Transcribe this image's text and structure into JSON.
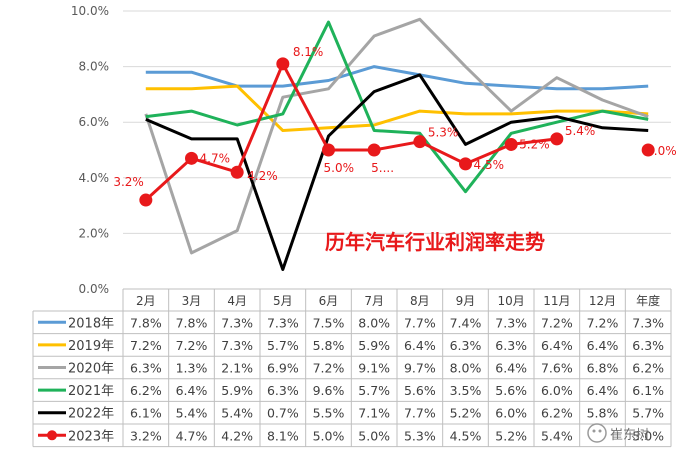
{
  "chart_data": {
    "type": "line",
    "title": "历年汽车行业利润率走势",
    "categories": [
      "2月",
      "3月",
      "4月",
      "5月",
      "6月",
      "7月",
      "8月",
      "9月",
      "10月",
      "11月",
      "12月",
      "年度"
    ],
    "yticks": [
      "0.0%",
      "2.0%",
      "4.0%",
      "6.0%",
      "8.0%",
      "10.0%"
    ],
    "ylim": [
      0,
      10
    ],
    "grid": true,
    "legend": "bottom-table",
    "series": [
      {
        "name": "2018年",
        "color": "#5b9bd5",
        "values": [
          7.8,
          7.8,
          7.3,
          7.3,
          7.5,
          8.0,
          7.7,
          7.4,
          7.3,
          7.2,
          7.2,
          7.3
        ],
        "labels": [
          "7.8%",
          "7.8%",
          "7.3%",
          "7.3%",
          "7.5%",
          "8.0%",
          "7.7%",
          "7.4%",
          "7.3%",
          "7.2%",
          "7.2%",
          "7.3%"
        ]
      },
      {
        "name": "2019年",
        "color": "#ffc000",
        "values": [
          7.2,
          7.2,
          7.3,
          5.7,
          5.8,
          5.9,
          6.4,
          6.3,
          6.3,
          6.4,
          6.4,
          6.3
        ],
        "labels": [
          "7.2%",
          "7.2%",
          "7.3%",
          "5.7%",
          "5.8%",
          "5.9%",
          "6.4%",
          "6.3%",
          "6.3%",
          "6.4%",
          "6.4%",
          "6.3%"
        ]
      },
      {
        "name": "2020年",
        "color": "#a5a5a5",
        "values": [
          6.3,
          1.3,
          2.1,
          6.9,
          7.2,
          9.1,
          9.7,
          8.0,
          6.4,
          7.6,
          6.8,
          6.2
        ],
        "labels": [
          "6.3%",
          "1.3%",
          "2.1%",
          "6.9%",
          "7.2%",
          "9.1%",
          "9.7%",
          "8.0%",
          "6.4%",
          "7.6%",
          "6.8%",
          "6.2%"
        ]
      },
      {
        "name": "2021年",
        "color": "#1fb25a",
        "values": [
          6.2,
          6.4,
          5.9,
          6.3,
          9.6,
          5.7,
          5.6,
          3.5,
          5.6,
          6.0,
          6.4,
          6.1
        ],
        "labels": [
          "6.2%",
          "6.4%",
          "5.9%",
          "6.3%",
          "9.6%",
          "5.7%",
          "5.6%",
          "3.5%",
          "5.6%",
          "6.0%",
          "6.4%",
          "6.1%"
        ]
      },
      {
        "name": "2022年",
        "color": "#000000",
        "values": [
          6.1,
          5.4,
          5.4,
          0.7,
          5.5,
          7.1,
          7.7,
          5.2,
          6.0,
          6.2,
          5.8,
          5.7
        ],
        "labels": [
          "6.1%",
          "5.4%",
          "5.4%",
          "0.7%",
          "5.5%",
          "7.1%",
          "7.7%",
          "5.2%",
          "6.0%",
          "6.2%",
          "5.8%",
          "5.7%"
        ]
      },
      {
        "name": "2023年",
        "color": "#e8191b",
        "values": [
          3.2,
          4.7,
          4.2,
          8.1,
          5.0,
          5.0,
          5.3,
          4.5,
          5.2,
          5.4,
          null,
          5.0
        ],
        "labels": [
          "3.2%",
          "4.7%",
          "4.2%",
          "8.1%",
          "5.0%",
          "5.0%",
          "5.3%",
          "4.5%",
          "5.2%",
          "5.4%",
          "",
          "5.0%"
        ],
        "datalabels": [
          "3.2%",
          "4.7%",
          "4.2%",
          "8.1%",
          "5.0%",
          "5....",
          "5.3%",
          "4.5%",
          "5.2%",
          "5.4%",
          "",
          "5.0%"
        ]
      }
    ]
  },
  "watermark": "崔东树"
}
